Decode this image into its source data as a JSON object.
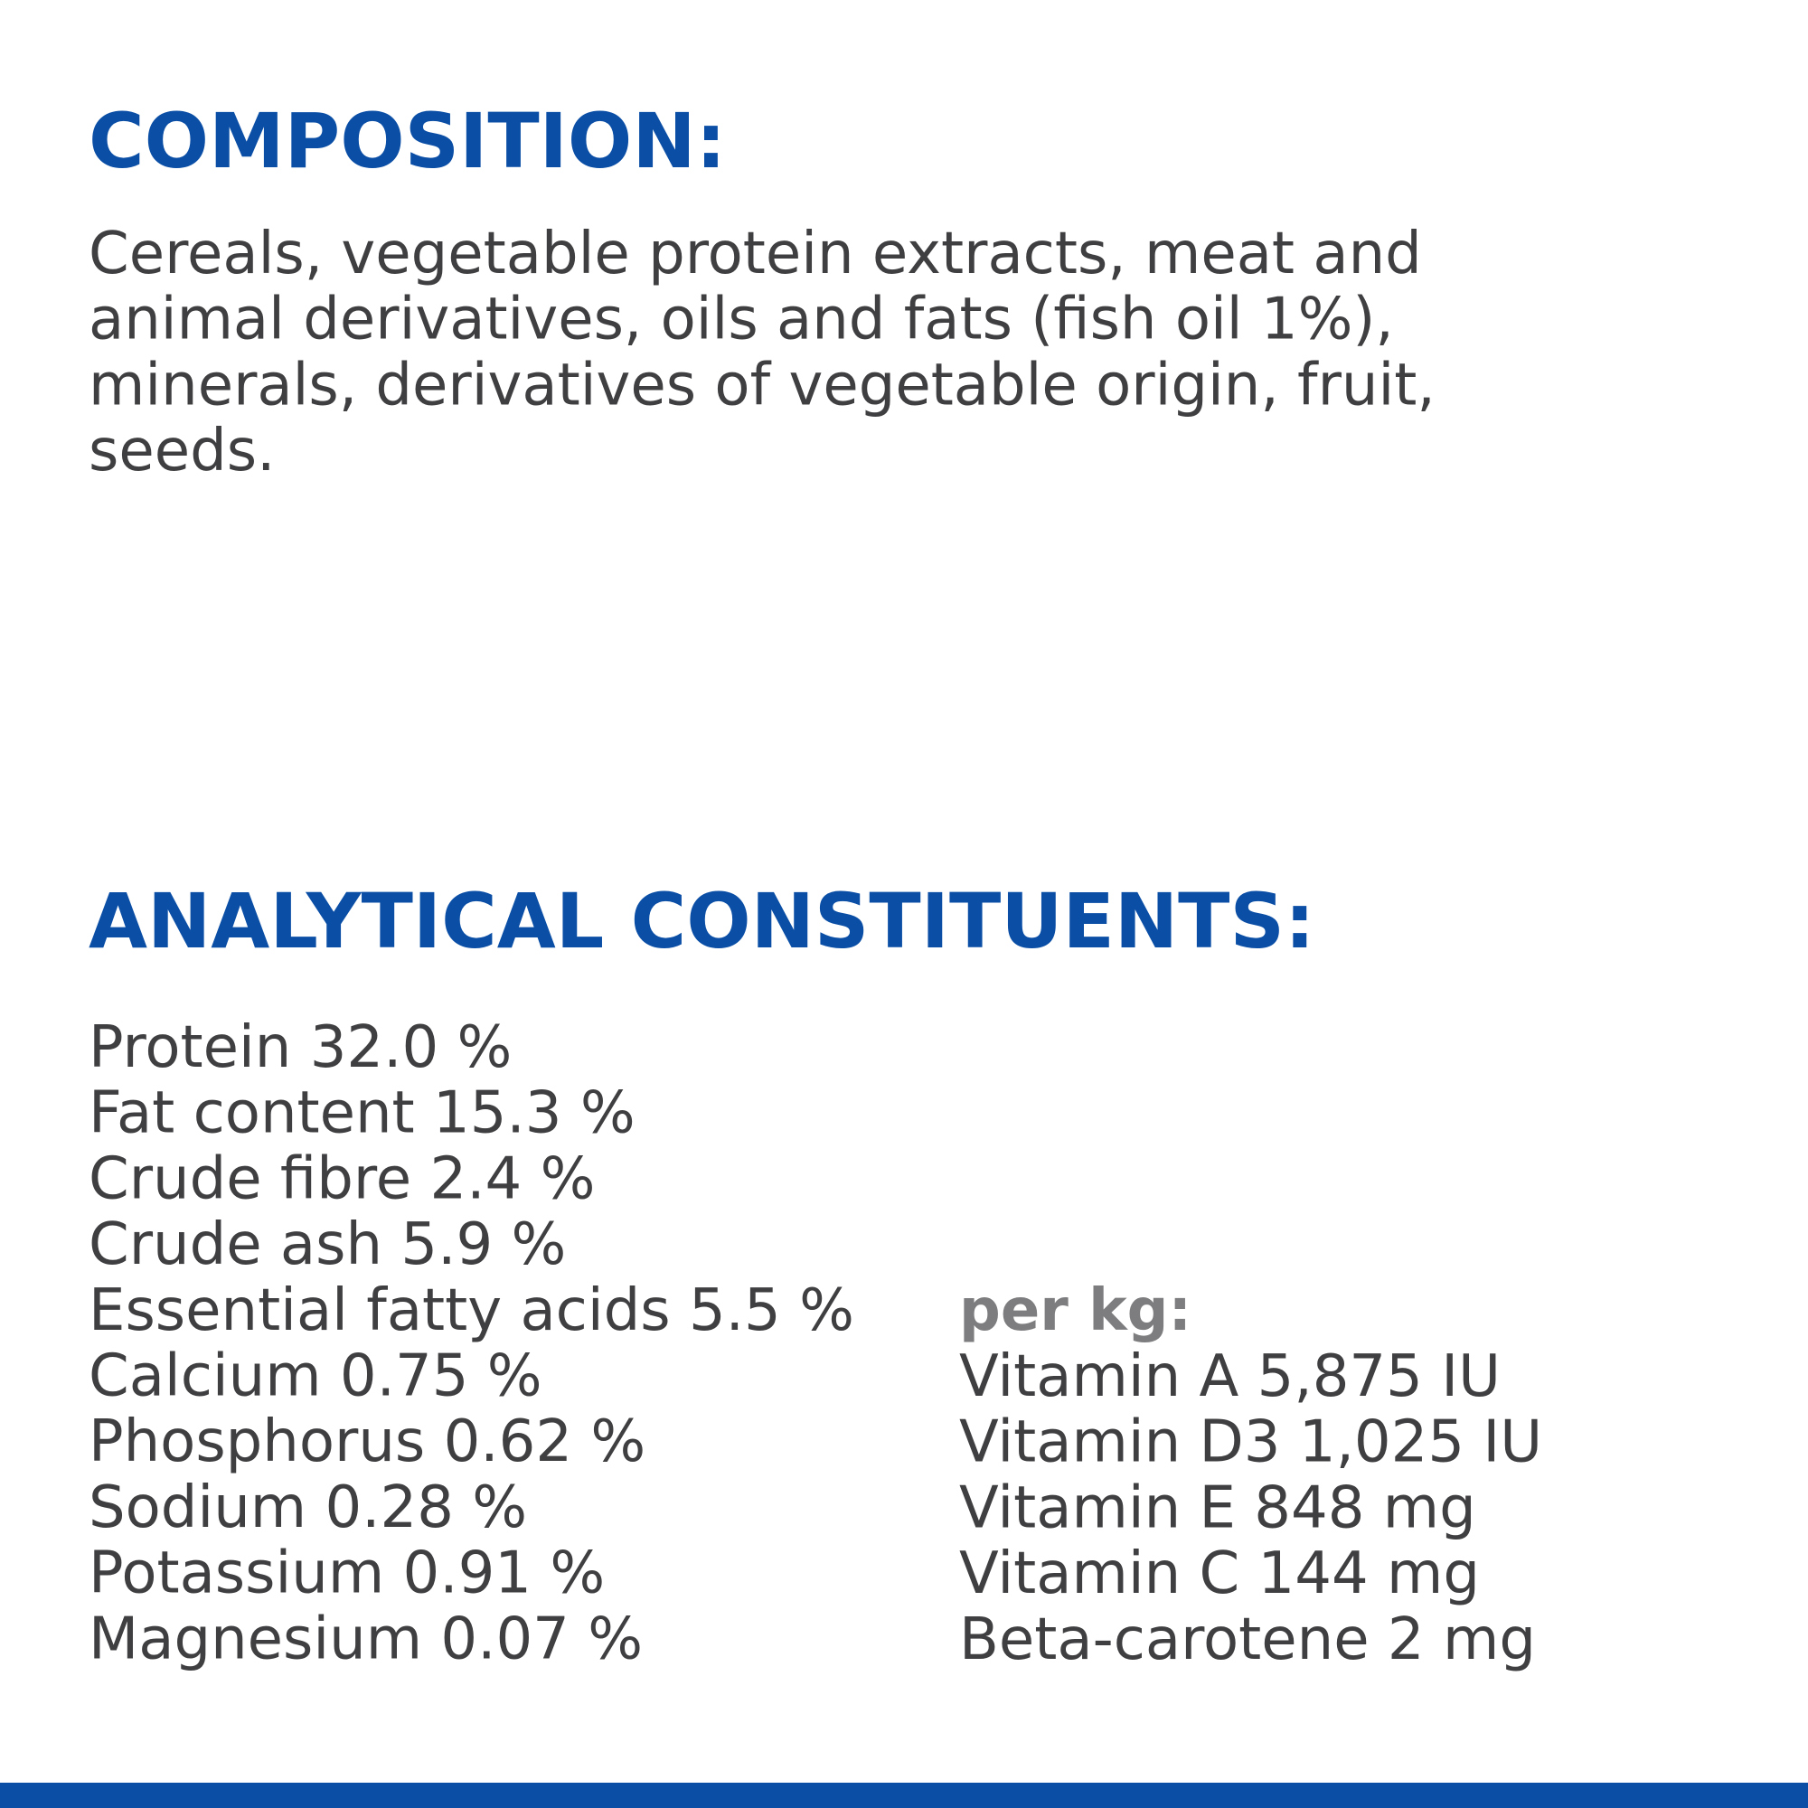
{
  "composition": {
    "title": "COMPOSITION:",
    "lines": [
      "Cereals, vegetable protein extracts, meat and",
      "animal derivatives, oils and fats (fish oil 1%),",
      "minerals, derivatives of vegetable origin, fruit,",
      "seeds."
    ]
  },
  "analytical": {
    "title": "ANALYTICAL CONSTITUENTS:",
    "items": [
      "Protein 32.0 %",
      "Fat content 15.3 %",
      "Crude fibre 2.4 %",
      "Crude ash 5.9 %",
      "Essential fatty acids 5.5 %",
      "Calcium 0.75 %",
      "Phosphorus 0.62 %",
      "Sodium 0.28 %",
      "Potassium 0.91 %",
      "Magnesium 0.07 %"
    ],
    "per_kg": {
      "title": "per kg:",
      "items": [
        "Vitamin A 5,875 IU",
        "Vitamin D3 1,025 IU",
        "Vitamin E 848 mg",
        "Vitamin C 144 mg",
        "Beta-carotene 2 mg"
      ]
    }
  }
}
